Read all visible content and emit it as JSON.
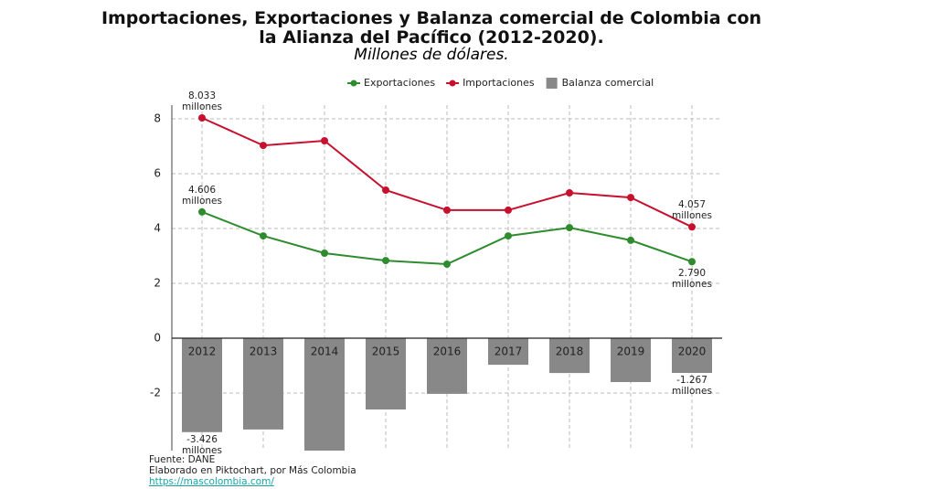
{
  "chart_data": {
    "type": "bar_line",
    "title": [
      "Importaciones, Exportaciones y Balanza comercial de Colombia con",
      "la Alianza del Pacífico (2012-2020)."
    ],
    "subtitle": "Millones de dólares.",
    "categories": [
      "2012",
      "2013",
      "2014",
      "2015",
      "2016",
      "2017",
      "2018",
      "2019",
      "2020"
    ],
    "series": [
      {
        "name": "Exportaciones",
        "type": "line",
        "color": "#2e8b2e",
        "values": [
          4.606,
          3.73,
          3.1,
          2.83,
          2.7,
          3.73,
          4.03,
          3.57,
          2.79
        ],
        "value_labels": [
          "4.606 millones",
          null,
          null,
          null,
          null,
          null,
          null,
          null,
          "2.790 millones"
        ]
      },
      {
        "name": "Importaciones",
        "type": "line",
        "color": "#c8102e",
        "values": [
          8.033,
          7.03,
          7.2,
          5.4,
          4.67,
          4.67,
          5.3,
          5.13,
          4.057
        ],
        "value_labels": [
          "8.033 millones",
          null,
          null,
          null,
          null,
          null,
          null,
          null,
          "4.057 millones"
        ]
      },
      {
        "name": "Balanza comercial",
        "type": "bar",
        "color": "#888888",
        "values": [
          -3.426,
          -3.33,
          -4.1,
          -2.6,
          -2.03,
          -0.97,
          -1.27,
          -1.6,
          -1.267
        ],
        "value_labels": [
          "-3.426 millones",
          null,
          null,
          null,
          null,
          null,
          null,
          null,
          "-1.267 millones"
        ]
      }
    ],
    "ylim": [
      -4.1,
      8.5
    ],
    "yticks": [
      -2,
      0,
      2,
      4,
      6,
      8
    ],
    "grid": true,
    "footer": [
      "Fuente: DANE",
      "Elaborado en Piktochart, por Más Colombia"
    ],
    "link": "https://mascolombia.com/"
  }
}
